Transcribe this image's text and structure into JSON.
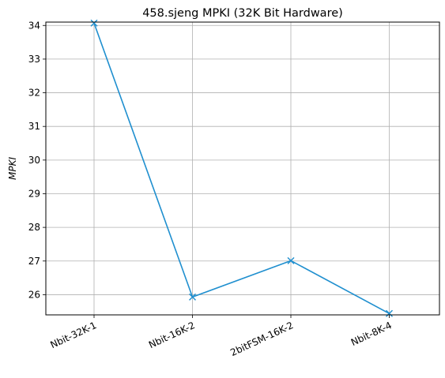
{
  "chart_data": {
    "type": "line",
    "title": "458.sjeng MPKI (32K Bit Hardware)",
    "xlabel": "",
    "ylabel": "MPKI",
    "categories": [
      "Nbit-32K-1",
      "Nbit-16K-2",
      "2bitFSM-16K-2",
      "Nbit-8K-4"
    ],
    "series": [
      {
        "values": [
          34.07,
          25.93,
          27.01,
          25.44
        ],
        "color": "#1f8fcf",
        "marker": "x"
      }
    ],
    "ylim": [
      25.4,
      34.1
    ],
    "yticks": [
      26,
      27,
      28,
      29,
      30,
      31,
      32,
      33,
      34
    ],
    "grid": true,
    "xtick_rotation": 25
  }
}
